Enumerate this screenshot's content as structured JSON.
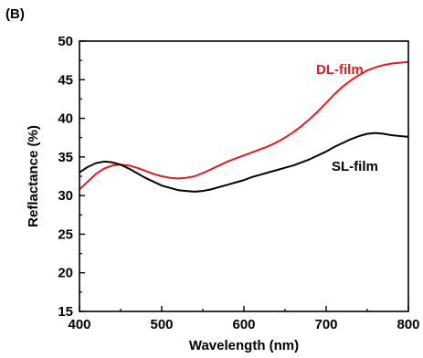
{
  "panel_label": "(B)",
  "chart_data": {
    "type": "line",
    "title": "",
    "xlabel": "Wavelength (nm)",
    "ylabel": "Reflactance (%)",
    "xlim": [
      400,
      800
    ],
    "ylim": [
      15,
      50
    ],
    "x_ticks": [
      400,
      500,
      600,
      700,
      800
    ],
    "y_ticks": [
      15,
      20,
      25,
      30,
      35,
      40,
      45,
      50
    ],
    "grid": false,
    "series": [
      {
        "name": "DL-film",
        "color": "#e31a1c",
        "x": [
          400,
          410,
          420,
          430,
          440,
          450,
          460,
          470,
          480,
          490,
          500,
          510,
          520,
          530,
          540,
          550,
          560,
          570,
          580,
          590,
          600,
          610,
          620,
          630,
          640,
          650,
          660,
          670,
          680,
          690,
          700,
          710,
          720,
          730,
          740,
          750,
          760,
          770,
          780,
          790,
          800
        ],
        "y": [
          30.8,
          31.8,
          32.8,
          33.5,
          33.9,
          34.0,
          33.9,
          33.6,
          33.2,
          32.8,
          32.5,
          32.3,
          32.2,
          32.3,
          32.5,
          32.9,
          33.4,
          33.9,
          34.4,
          34.8,
          35.2,
          35.6,
          36.0,
          36.4,
          36.9,
          37.5,
          38.2,
          39.0,
          39.9,
          40.9,
          42.0,
          43.1,
          44.1,
          44.9,
          45.6,
          46.2,
          46.6,
          46.9,
          47.1,
          47.2,
          47.3
        ]
      },
      {
        "name": "SL-film",
        "color": "#000000",
        "x": [
          400,
          410,
          420,
          430,
          440,
          450,
          460,
          470,
          480,
          490,
          500,
          510,
          520,
          530,
          540,
          550,
          560,
          570,
          580,
          590,
          600,
          610,
          620,
          630,
          640,
          650,
          660,
          670,
          680,
          690,
          700,
          710,
          720,
          730,
          740,
          750,
          760,
          770,
          780,
          790,
          800
        ],
        "y": [
          33.0,
          33.7,
          34.2,
          34.4,
          34.3,
          34.0,
          33.5,
          32.9,
          32.3,
          31.8,
          31.3,
          31.0,
          30.7,
          30.6,
          30.5,
          30.6,
          30.8,
          31.1,
          31.4,
          31.7,
          32.0,
          32.4,
          32.7,
          33.0,
          33.3,
          33.6,
          33.9,
          34.3,
          34.7,
          35.2,
          35.7,
          36.3,
          36.8,
          37.3,
          37.7,
          38.0,
          38.1,
          38.0,
          37.8,
          37.7,
          37.6
        ]
      }
    ],
    "series_label_positions": [
      "upper-right",
      "right"
    ]
  }
}
